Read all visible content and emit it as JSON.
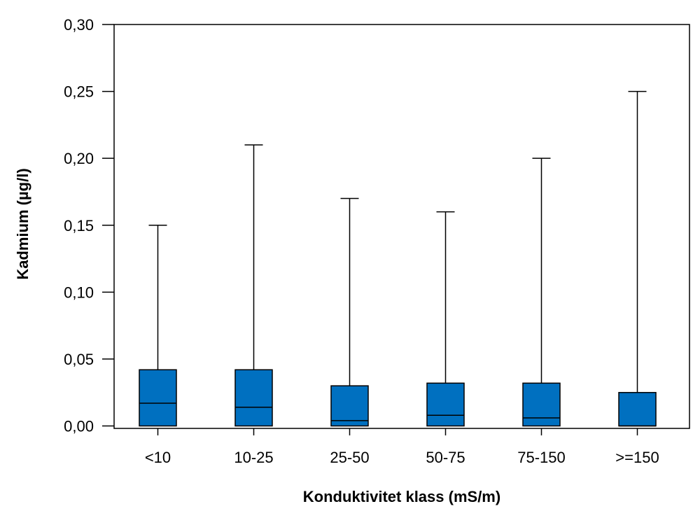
{
  "chart_data": {
    "type": "boxplot",
    "title": "",
    "xlabel": "Konduktivitet klass (mS/m)",
    "ylabel": "Kadmium (µg/l)",
    "ylim": [
      0,
      0.3
    ],
    "yticks": [
      0.0,
      0.05,
      0.1,
      0.15,
      0.2,
      0.25,
      0.3
    ],
    "ytick_labels": [
      "0,00",
      "0,05",
      "0,10",
      "0,15",
      "0,20",
      "0,25",
      "0,30"
    ],
    "categories": [
      "<10",
      "10-25",
      "25-50",
      "50-75",
      "75-150",
      ">=150"
    ],
    "boxes": [
      {
        "category": "<10",
        "min": 0.0,
        "q1": 0.0,
        "median": 0.017,
        "q3": 0.042,
        "max": 0.15
      },
      {
        "category": "10-25",
        "min": 0.0,
        "q1": 0.0,
        "median": 0.014,
        "q3": 0.042,
        "max": 0.21
      },
      {
        "category": "25-50",
        "min": 0.0,
        "q1": 0.0,
        "median": 0.004,
        "q3": 0.03,
        "max": 0.17
      },
      {
        "category": "50-75",
        "min": 0.0,
        "q1": 0.0,
        "median": 0.008,
        "q3": 0.032,
        "max": 0.16
      },
      {
        "category": "75-150",
        "min": 0.0,
        "q1": 0.0,
        "median": 0.006,
        "q3": 0.032,
        "max": 0.2
      },
      {
        "category": ">=150",
        "min": 0.0,
        "q1": 0.0,
        "median": 0.0,
        "q3": 0.025,
        "max": 0.25
      }
    ],
    "box_color": "#0070c0",
    "grid": false,
    "legend": "none"
  }
}
